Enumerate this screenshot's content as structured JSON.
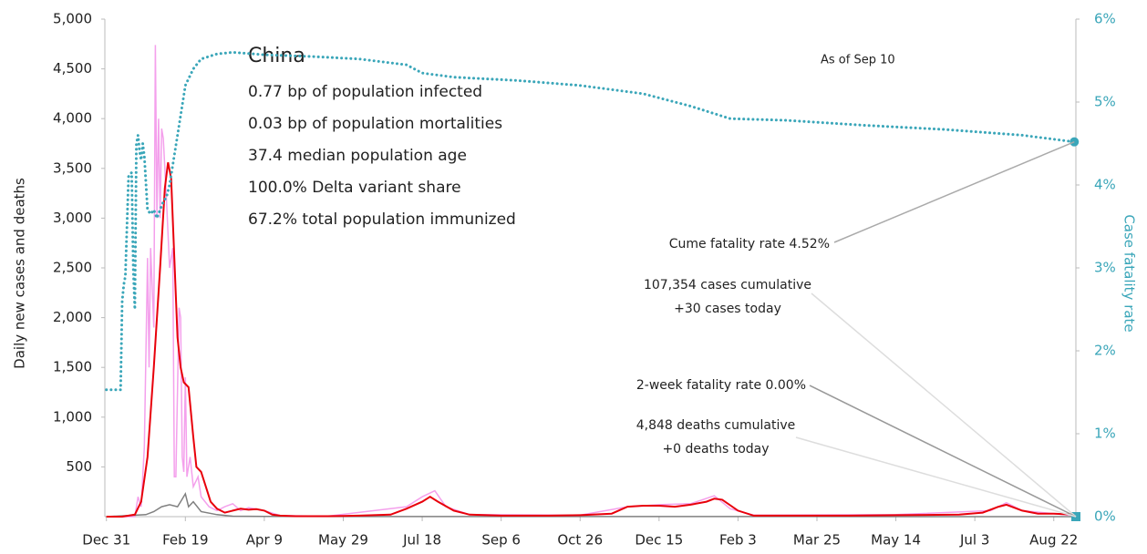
{
  "chart_data": {
    "type": "line",
    "title": "China",
    "stats": [
      "0.77 bp of population infected",
      "0.03 bp of population mortalities",
      "37.4 median population age",
      "100.0% Delta variant share",
      "67.2% total population immunized"
    ],
    "date_note": "As of Sep 10",
    "annotations": [
      "Cume fatality rate 4.52%",
      "107,354 cases cumulative",
      "+30 cases today",
      "2-week fatality rate 0.00%",
      "4,848 deaths cumulative",
      "+0 deaths today"
    ],
    "ylabel": "Daily new cases and deaths",
    "y2label": "Case fatality rate",
    "xlim": [
      -1,
      614
    ],
    "xticks": [
      {
        "value": 0,
        "label": "Dec 31"
      },
      {
        "value": 50,
        "label": "Feb 19"
      },
      {
        "value": 100,
        "label": "Apr 9"
      },
      {
        "value": 150,
        "label": "May 29"
      },
      {
        "value": 200,
        "label": "Jul 18"
      },
      {
        "value": 250,
        "label": "Sep 6"
      },
      {
        "value": 300,
        "label": "Oct 26"
      },
      {
        "value": 350,
        "label": "Dec 15"
      },
      {
        "value": 400,
        "label": "Feb 3"
      },
      {
        "value": 450,
        "label": "Mar 25"
      },
      {
        "value": 500,
        "label": "May 14"
      },
      {
        "value": 550,
        "label": "Jul 3"
      },
      {
        "value": 600,
        "label": "Aug 22"
      }
    ],
    "ylim": [
      0,
      5000
    ],
    "yticks": [
      {
        "value": 500,
        "label": "500"
      },
      {
        "value": 1000,
        "label": "1,000"
      },
      {
        "value": 1500,
        "label": "1,500"
      },
      {
        "value": 2000,
        "label": "2,000"
      },
      {
        "value": 2500,
        "label": "2,500"
      },
      {
        "value": 3000,
        "label": "3,000"
      },
      {
        "value": 3500,
        "label": "3,500"
      },
      {
        "value": 4000,
        "label": "4,000"
      },
      {
        "value": 4500,
        "label": "4,500"
      },
      {
        "value": 5000,
        "label": "5,000"
      }
    ],
    "y2lim": [
      0,
      6
    ],
    "y2ticks": [
      {
        "value": 0,
        "label": "0%"
      },
      {
        "value": 1,
        "label": "1%"
      },
      {
        "value": 2,
        "label": "2%"
      },
      {
        "value": 3,
        "label": "3%"
      },
      {
        "value": 4,
        "label": "4%"
      },
      {
        "value": 5,
        "label": "5%"
      },
      {
        "value": 6,
        "label": "6%"
      }
    ],
    "series": [
      {
        "color": "#f4a0ec",
        "style": "solid",
        "x": [
          0,
          18,
          20,
          22,
          24,
          26,
          27,
          28,
          30,
          31,
          32,
          33,
          34,
          35,
          36,
          38,
          40,
          42,
          43,
          44,
          46,
          47,
          48,
          49,
          50,
          51,
          53,
          55,
          58,
          60,
          65,
          70,
          75,
          80,
          85,
          90,
          100,
          110,
          140,
          190,
          200,
          208,
          215,
          230,
          300,
          330,
          350,
          370,
          385,
          395,
          410,
          500,
          560,
          570,
          580,
          600,
          613
        ],
        "values": [
          0,
          0,
          200,
          100,
          700,
          2600,
          1500,
          2700,
          1900,
          4740,
          3000,
          4000,
          3000,
          3900,
          3800,
          3200,
          2500,
          2700,
          400,
          400,
          2100,
          2000,
          600,
          450,
          1400,
          400,
          600,
          300,
          400,
          200,
          100,
          60,
          100,
          130,
          60,
          90,
          60,
          10,
          5,
          100,
          200,
          260,
          100,
          20,
          15,
          100,
          120,
          130,
          210,
          80,
          15,
          20,
          60,
          140,
          60,
          30,
          10
        ]
      },
      {
        "color": "#808080",
        "style": "solid",
        "x": [
          0,
          25,
          30,
          35,
          40,
          45,
          47,
          50,
          52,
          55,
          60,
          70,
          80,
          100,
          613
        ],
        "values": [
          0,
          20,
          50,
          100,
          120,
          100,
          150,
          230,
          100,
          150,
          50,
          20,
          5,
          2,
          0
        ]
      },
      {
        "color": "#e8000b",
        "style": "solid",
        "x": [
          0,
          10,
          18,
          22,
          26,
          30,
          34,
          37,
          39,
          41,
          43,
          45,
          47,
          49,
          52,
          55,
          57,
          60,
          63,
          66,
          70,
          75,
          80,
          85,
          90,
          95,
          100,
          105,
          110,
          120,
          140,
          160,
          180,
          190,
          200,
          205,
          210,
          220,
          230,
          250,
          280,
          300,
          320,
          330,
          340,
          350,
          360,
          370,
          380,
          385,
          390,
          400,
          410,
          430,
          470,
          500,
          540,
          555,
          565,
          570,
          580,
          590,
          600,
          613
        ],
        "values": [
          0,
          0,
          20,
          150,
          600,
          1500,
          2500,
          3300,
          3560,
          3400,
          2600,
          1800,
          1500,
          1350,
          1300,
          800,
          500,
          450,
          300,
          150,
          80,
          40,
          60,
          80,
          70,
          75,
          60,
          20,
          10,
          5,
          5,
          10,
          20,
          80,
          150,
          200,
          150,
          60,
          20,
          10,
          10,
          15,
          30,
          100,
          110,
          110,
          100,
          120,
          150,
          180,
          170,
          60,
          10,
          10,
          10,
          15,
          20,
          40,
          100,
          120,
          60,
          30,
          30,
          20
        ]
      },
      {
        "color": "#3aa6b9",
        "style": "dotted",
        "axis": "y2",
        "x": [
          0,
          9,
          10,
          11,
          12,
          14,
          16,
          17,
          18,
          19,
          20,
          21,
          22,
          23,
          24,
          26,
          28,
          30,
          32,
          34,
          36,
          38,
          40,
          45,
          50,
          55,
          60,
          70,
          80,
          100,
          130,
          160,
          190,
          200,
          220,
          260,
          300,
          340,
          370,
          395,
          430,
          480,
          530,
          580,
          613
        ],
        "values": [
          1.53,
          1.53,
          2.6,
          2.8,
          2.9,
          4.1,
          4.15,
          3.0,
          2.5,
          4.5,
          4.6,
          4.4,
          4.3,
          4.5,
          4.35,
          3.7,
          3.65,
          3.7,
          3.6,
          3.7,
          3.8,
          3.85,
          4.0,
          4.6,
          5.2,
          5.4,
          5.52,
          5.58,
          5.6,
          5.57,
          5.55,
          5.52,
          5.45,
          5.35,
          5.3,
          5.26,
          5.2,
          5.1,
          4.95,
          4.8,
          4.78,
          4.72,
          4.67,
          4.6,
          4.52
        ]
      }
    ]
  }
}
